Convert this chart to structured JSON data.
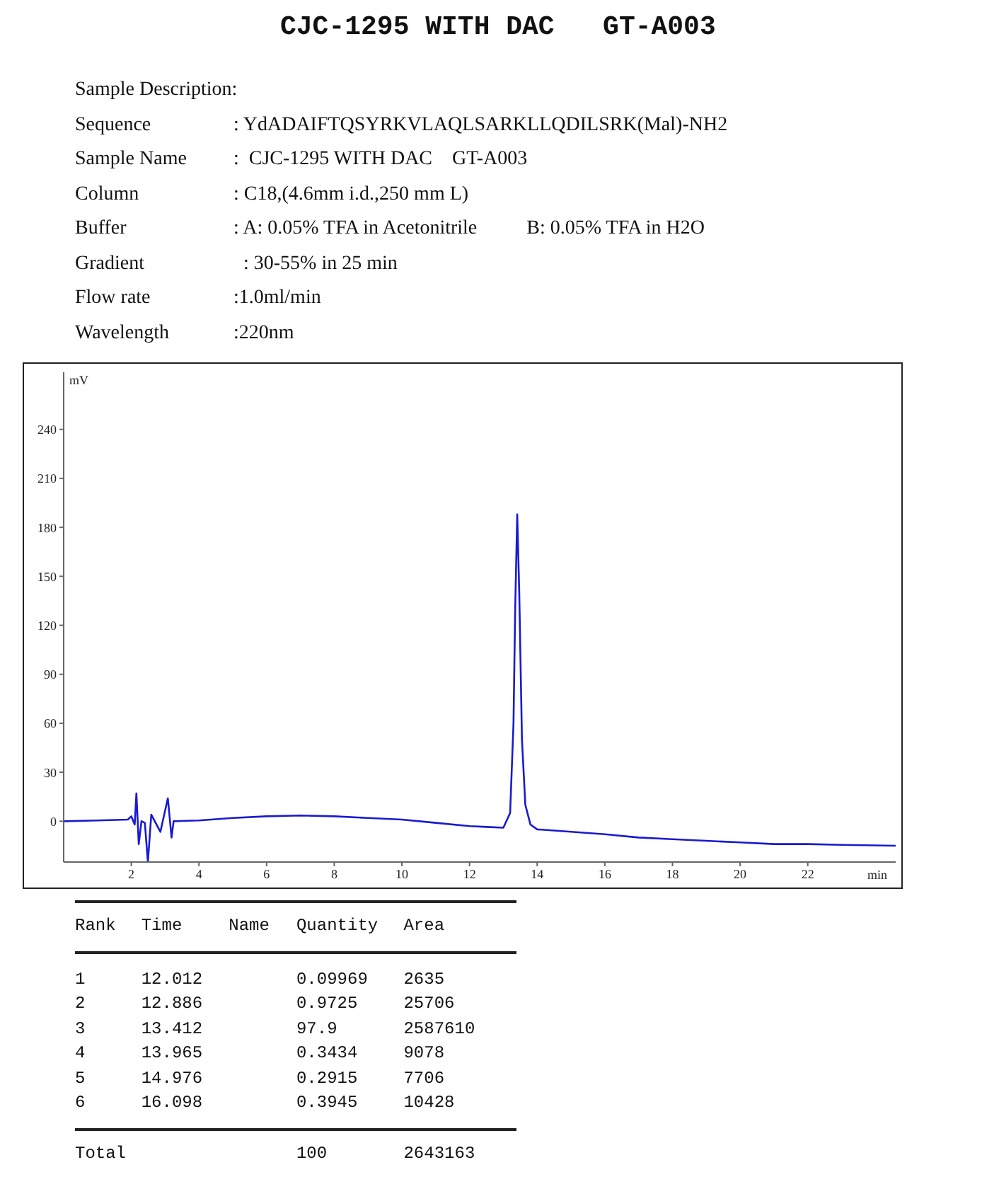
{
  "chart_data": {
    "type": "line",
    "title": "CJC-1295 WITH DAC   GT-A003",
    "xlabel": "min",
    "ylabel": "mV",
    "annotations": [
      "Sample Description:",
      "Sequence\t: YdADAIFTQSYRKVLAQLSARKLLQDILSRK(Mal)-NH2",
      "Sample Name\t:  CJC-1295 WITH DAC    GT-A003",
      "Column\t: C18,(4.6mm i.d.,250 mm L)",
      "Buffer\t: A: 0.05% TFA in Acetonitrile          B: 0.05% TFA in H2O",
      "Gradient\t  : 30-55% in 25 min",
      "Flow rate\t:1.0ml/min",
      "Wavelength\t:220nm",
      "Rank\tTime\tName\tQuantity\tArea",
      "1\t12.012\t\t0.09969\t2635",
      "2\t12.886\t\t0.9725\t25706",
      "3\t13.412\t\t97.9\t2587610",
      "4\t13.965\t\t0.3434\t9078",
      "5\t14.976\t\t0.2915\t7706",
      "6\t16.098\t\t0.3945\t10428",
      "Total\t\t\t100\t2643163"
    ],
    "x": [
      0,
      1,
      1.9,
      2.0,
      2.1,
      2.15,
      2.22,
      2.3,
      2.4,
      2.49,
      2.59,
      2.86,
      3.08,
      3.19,
      3.25,
      4,
      5,
      6,
      7,
      8,
      9,
      10,
      11,
      12,
      12.5,
      13.0,
      13.2,
      13.3,
      13.35,
      13.41,
      13.47,
      13.55,
      13.65,
      13.8,
      14,
      15,
      16,
      17,
      18,
      19,
      20,
      21,
      22,
      23,
      24.6
    ],
    "series": [
      {
        "color": "#1a1ad0",
        "values": [
          0,
          0.5,
          1,
          3,
          -2,
          17,
          -14,
          0,
          -1,
          -25,
          4,
          -6.5,
          14,
          -10,
          0,
          0.5,
          2,
          3,
          3.5,
          3,
          2,
          1,
          -1,
          -3,
          -3.5,
          -4,
          5,
          60,
          130,
          188,
          140,
          50,
          10,
          -2,
          -5,
          -6.5,
          -8,
          -10,
          -11,
          -12,
          -13,
          -14,
          -14,
          -14.5,
          -15
        ]
      }
    ],
    "xlim": [
      0,
      24.6
    ],
    "xticks": [
      2,
      4,
      6,
      8,
      10,
      12,
      14,
      16,
      18,
      20,
      22
    ],
    "ylim": [
      -25,
      275
    ],
    "yticks": [
      0,
      30,
      60,
      90,
      120,
      150,
      180,
      210,
      240
    ],
    "grid": false,
    "legend": false,
    "marker": "none",
    "line_style": "solid"
  }
}
